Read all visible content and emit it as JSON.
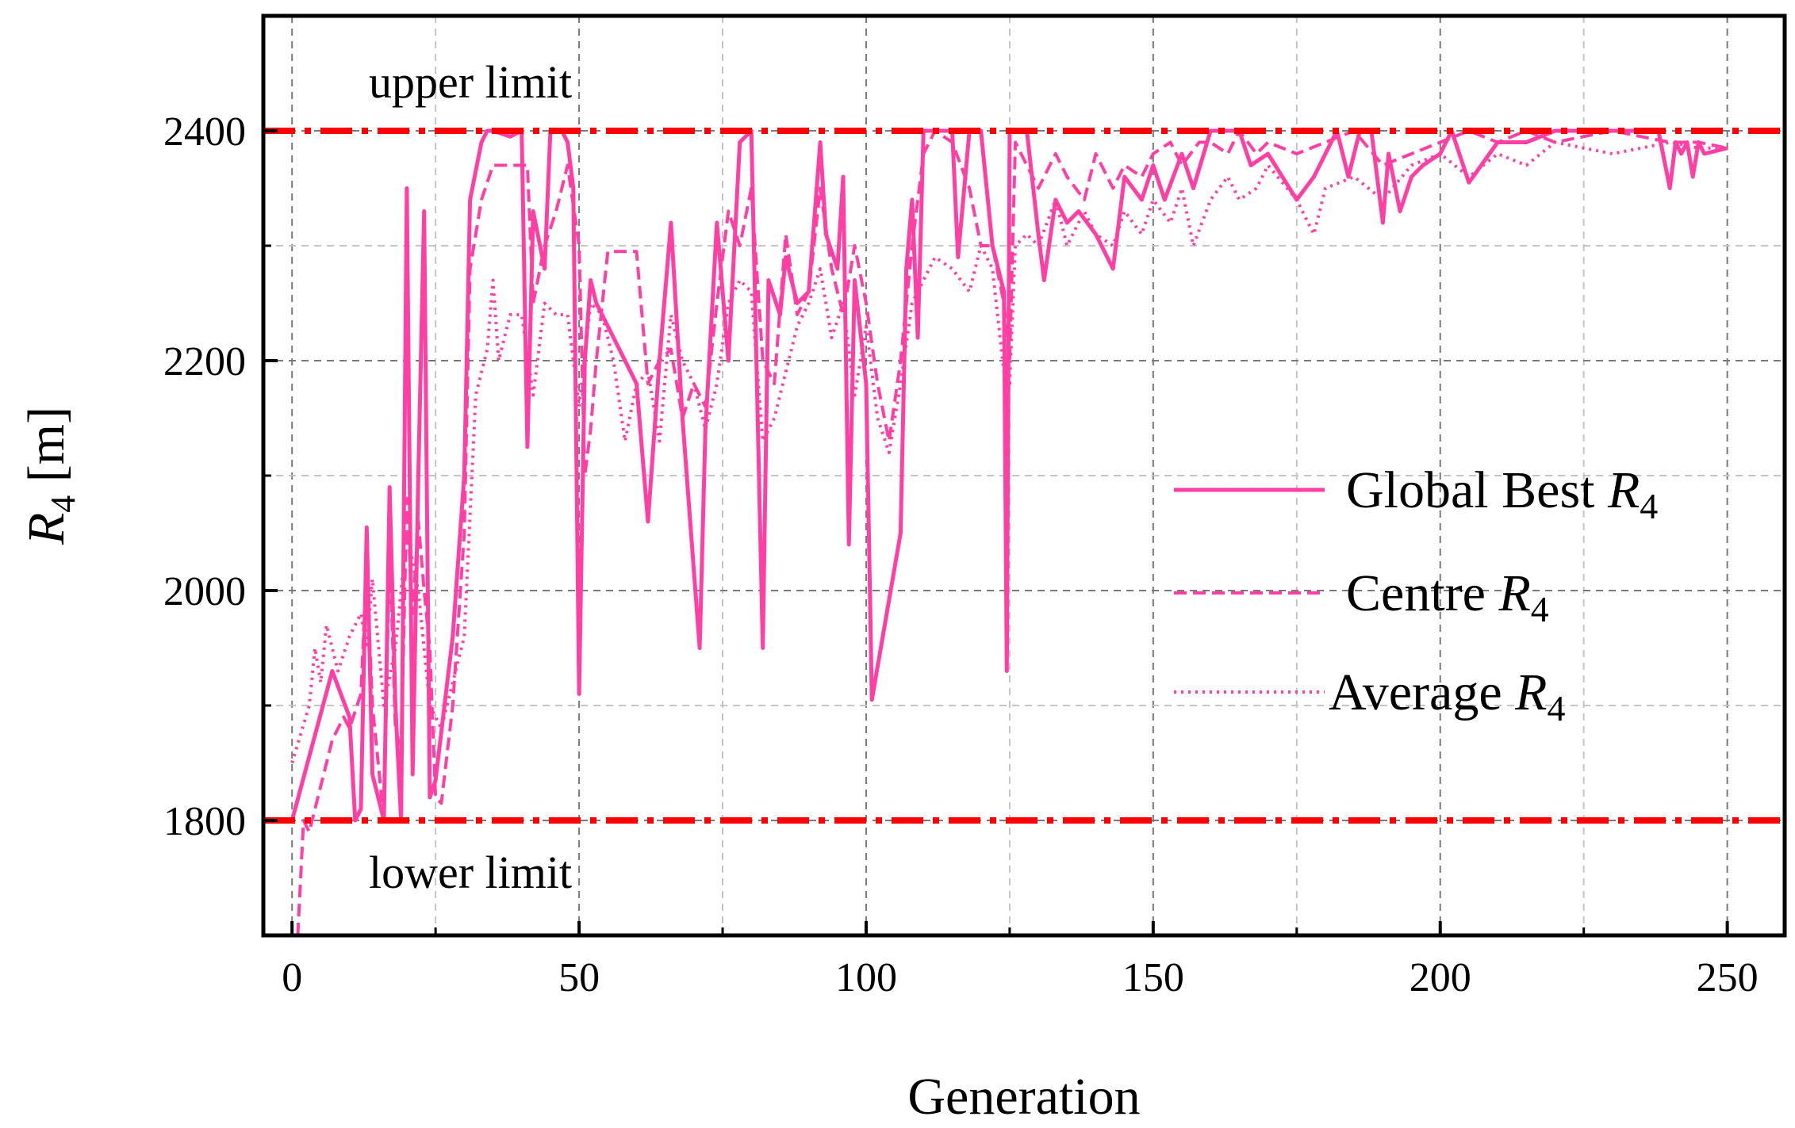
{
  "chart_data": {
    "type": "line",
    "title": "",
    "xlabel": "Generation",
    "ylabel_main": "R",
    "ylabel_sub": "4",
    "ylabel_unit": " [m]",
    "xlim": [
      -5,
      260
    ],
    "ylim": [
      1700,
      2500
    ],
    "xticks": [
      0,
      50,
      100,
      150,
      200,
      250
    ],
    "yticks": [
      1800,
      2000,
      2200,
      2400
    ],
    "xtick_labels": [
      "0",
      "50",
      "100",
      "150",
      "200",
      "250"
    ],
    "ytick_labels": [
      "1800",
      "2000",
      "2200",
      "2400"
    ],
    "grid": true,
    "legend_position": "center-right",
    "line_color": "#ff3fa4",
    "limit_color": "#ff0000",
    "reference_lines": [
      {
        "y": 2400,
        "label": "upper limit"
      },
      {
        "y": 1800,
        "label": "lower limit"
      }
    ],
    "series": [
      {
        "name": "Global Best ",
        "name_sub": "4",
        "name_italic": "R",
        "style": "solid",
        "x": [
          0,
          7,
          10,
          11,
          12,
          13,
          14,
          15,
          16,
          17,
          18,
          19,
          20,
          21,
          22,
          23,
          24,
          25,
          28,
          30,
          31,
          33,
          34,
          35,
          38,
          40,
          41,
          42,
          44,
          45,
          46,
          47,
          48,
          49,
          50,
          51,
          52,
          53,
          55,
          60,
          62,
          64,
          66,
          68,
          71,
          72,
          74,
          76,
          78,
          80,
          82,
          83,
          85,
          86,
          88,
          90,
          92,
          93,
          95,
          96,
          97,
          98,
          100,
          101,
          106,
          107,
          108,
          109,
          110,
          112,
          115,
          116,
          118,
          120,
          122,
          124,
          124.5,
          125,
          126,
          128,
          130,
          131,
          133,
          135,
          137,
          140,
          143,
          145,
          148,
          150,
          152,
          155,
          157,
          160,
          162,
          165,
          167,
          170,
          175,
          178,
          180,
          182,
          184,
          186,
          188,
          190,
          191,
          193,
          195,
          197,
          200,
          202,
          205,
          210,
          215,
          220,
          230,
          238,
          240,
          241,
          242,
          243,
          244,
          245,
          246,
          250
        ],
        "y": [
          1800,
          1930,
          1890,
          1800,
          1810,
          2055,
          1840,
          1820,
          1800,
          2090,
          1900,
          1800,
          2350,
          1840,
          2100,
          2330,
          1820,
          1835,
          1960,
          2100,
          2340,
          2390,
          2400,
          2400,
          2395,
          2400,
          2125,
          2330,
          2280,
          2400,
          2400,
          2400,
          2390,
          2350,
          1910,
          2200,
          2270,
          2250,
          2230,
          2180,
          2060,
          2200,
          2320,
          2150,
          1950,
          2140,
          2320,
          2200,
          2390,
          2400,
          1950,
          2270,
          2240,
          2290,
          2250,
          2260,
          2390,
          2310,
          2280,
          2360,
          2040,
          2270,
          2180,
          1905,
          2050,
          2280,
          2340,
          2220,
          2400,
          2400,
          2400,
          2290,
          2400,
          2400,
          2300,
          2260,
          1930,
          2400,
          2400,
          2400,
          2310,
          2270,
          2340,
          2320,
          2330,
          2310,
          2280,
          2360,
          2340,
          2370,
          2340,
          2380,
          2350,
          2400,
          2400,
          2400,
          2370,
          2380,
          2340,
          2360,
          2380,
          2400,
          2360,
          2400,
          2400,
          2320,
          2380,
          2330,
          2360,
          2370,
          2380,
          2400,
          2355,
          2390,
          2390,
          2400,
          2400,
          2400,
          2350,
          2390,
          2380,
          2390,
          2360,
          2390,
          2380,
          2385
        ]
      },
      {
        "name": "Centre ",
        "name_sub": "4",
        "name_italic": "R",
        "style": "dashed",
        "x": [
          1,
          2,
          3,
          5,
          7,
          9,
          10,
          12,
          13,
          14,
          15,
          16,
          17,
          18,
          19,
          20,
          21,
          22,
          23,
          24,
          25,
          26,
          28,
          30,
          31,
          33,
          35,
          38,
          41,
          42,
          44,
          46,
          48,
          50,
          51,
          52,
          53,
          55,
          60,
          62,
          64,
          66,
          68,
          70,
          72,
          74,
          76,
          78,
          80,
          82,
          84,
          86,
          88,
          90,
          92,
          94,
          96,
          98,
          100,
          102,
          104,
          106,
          108,
          110,
          112,
          115,
          118,
          120,
          122,
          124,
          125,
          126,
          128,
          130,
          133,
          135,
          138,
          140,
          143,
          145,
          148,
          150,
          153,
          155,
          158,
          160,
          163,
          165,
          168,
          170,
          175,
          180,
          185,
          190,
          195,
          200,
          205,
          210,
          215,
          220,
          230,
          240,
          245,
          250
        ],
        "y": [
          1700,
          1800,
          1790,
          1830,
          1870,
          1890,
          1880,
          1910,
          2020,
          1900,
          1850,
          1800,
          2040,
          1880,
          1860,
          2080,
          1980,
          2060,
          2000,
          1950,
          1820,
          1815,
          1900,
          2050,
          2280,
          2340,
          2370,
          2370,
          2370,
          2250,
          2300,
          2330,
          2370,
          2300,
          2100,
          2140,
          2200,
          2295,
          2295,
          2180,
          2200,
          2210,
          2150,
          2180,
          2160,
          2250,
          2330,
          2300,
          2350,
          2200,
          2180,
          2310,
          2240,
          2260,
          2350,
          2280,
          2240,
          2300,
          2250,
          2180,
          2130,
          2200,
          2300,
          2380,
          2400,
          2390,
          2350,
          2300,
          2300,
          2250,
          2200,
          2390,
          2370,
          2350,
          2380,
          2360,
          2340,
          2380,
          2350,
          2370,
          2360,
          2380,
          2390,
          2370,
          2390,
          2390,
          2380,
          2400,
          2380,
          2390,
          2380,
          2390,
          2400,
          2370,
          2380,
          2390,
          2400,
          2390,
          2400,
          2390,
          2400,
          2390,
          2390,
          2385
        ]
      },
      {
        "name": "Average ",
        "name_sub": "4",
        "name_italic": "R",
        "style": "dotted",
        "x": [
          0,
          3,
          4,
          5,
          6,
          8,
          10,
          12,
          13,
          14,
          16,
          18,
          20,
          22,
          24,
          26,
          28,
          30,
          32,
          34,
          35,
          36,
          38,
          40,
          42,
          44,
          46,
          48,
          50,
          52,
          54,
          56,
          58,
          60,
          62,
          64,
          66,
          68,
          70,
          72,
          74,
          76,
          78,
          80,
          82,
          84,
          86,
          88,
          90,
          92,
          94,
          96,
          98,
          100,
          102,
          104,
          106,
          108,
          110,
          112,
          115,
          118,
          120,
          122,
          124,
          125,
          126,
          128,
          130,
          133,
          135,
          138,
          140,
          143,
          145,
          148,
          150,
          153,
          155,
          157,
          160,
          163,
          165,
          168,
          170,
          175,
          178,
          180,
          185,
          190,
          195,
          200,
          205,
          210,
          215,
          220,
          230,
          240,
          245,
          250
        ],
        "y": [
          1850,
          1900,
          1950,
          1920,
          1970,
          1930,
          1960,
          1980,
          1950,
          2010,
          1900,
          1950,
          2050,
          2000,
          1900,
          1880,
          1920,
          1960,
          2170,
          2210,
          2270,
          2200,
          2240,
          2240,
          2170,
          2250,
          2240,
          2240,
          2160,
          2250,
          2240,
          2200,
          2130,
          2180,
          2190,
          2130,
          2240,
          2200,
          2180,
          2140,
          2180,
          2250,
          2270,
          2260,
          2130,
          2150,
          2190,
          2230,
          2250,
          2280,
          2220,
          2250,
          2170,
          2230,
          2150,
          2120,
          2180,
          2250,
          2270,
          2290,
          2280,
          2260,
          2300,
          2280,
          2190,
          2180,
          2300,
          2310,
          2300,
          2340,
          2300,
          2330,
          2310,
          2300,
          2330,
          2310,
          2340,
          2320,
          2350,
          2300,
          2340,
          2360,
          2340,
          2350,
          2370,
          2340,
          2310,
          2350,
          2360,
          2340,
          2370,
          2380,
          2360,
          2380,
          2370,
          2390,
          2380,
          2390,
          2385,
          2385
        ]
      }
    ]
  }
}
